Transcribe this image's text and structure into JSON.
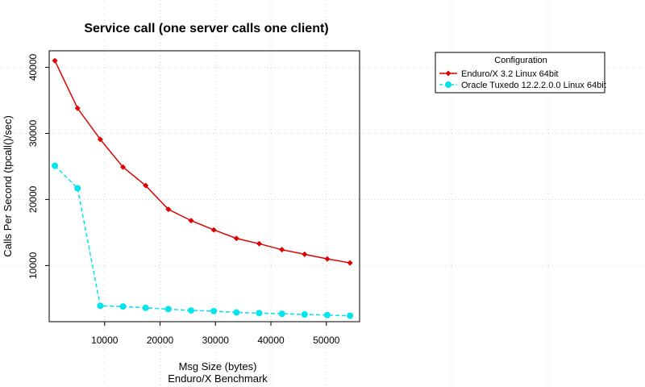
{
  "chart_data": {
    "type": "line",
    "title": "Service call (one server calls one client)",
    "xlabel": "Msg Size (bytes)",
    "ylabel": "Calls Per Second (tpcall()/sec)",
    "sublabel": "Enduro/X Benchmark",
    "xlim": [
      0,
      56000
    ],
    "ylim": [
      1500,
      42500
    ],
    "xticks": [
      10000,
      20000,
      30000,
      40000,
      50000
    ],
    "xtick_labels": [
      "10000",
      "20000",
      "30000",
      "40000",
      "50000"
    ],
    "yticks": [
      10000,
      20000,
      30000,
      40000
    ],
    "ytick_labels": [
      "10000",
      "20000",
      "30000",
      "40000"
    ],
    "grid": true,
    "legend": {
      "title": "Configuration",
      "placement": "top-right"
    },
    "x": [
      1024,
      5120,
      9216,
      13312,
      17408,
      21504,
      25600,
      29696,
      33792,
      37888,
      41984,
      46080,
      50176,
      54272
    ],
    "series": [
      {
        "name": "Enduro/X 3.2 Linux 64bit",
        "color": "#e00000",
        "marker": "diamond",
        "line": "solid",
        "values": [
          41000,
          33800,
          29100,
          24900,
          22100,
          18500,
          16800,
          15400,
          14100,
          13300,
          12400,
          11700,
          11000,
          10400
        ]
      },
      {
        "name": "Oracle Tuxedo 12.2.2.0.0 Linux 64bit",
        "color": "#00e5ee",
        "marker": "circle",
        "line": "dashed",
        "values": [
          25100,
          21700,
          3900,
          3800,
          3600,
          3400,
          3200,
          3100,
          2900,
          2800,
          2700,
          2600,
          2500,
          2400
        ]
      }
    ]
  }
}
